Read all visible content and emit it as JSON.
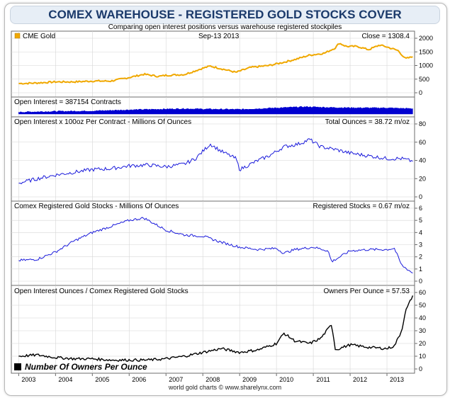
{
  "header": {
    "title": "COMEX WAREHOUSE - REGISTERED GOLD STOCKS COVER",
    "subtitle": "Comparing open interest positions versus warehouse registered stockpiles",
    "footer": "world gold charts © www.sharelynx.com"
  },
  "colors": {
    "gold": "#f0a800",
    "blue": "#1a1adb",
    "dark_blue": "#0000d0",
    "black": "#000000",
    "grid": "#d6d6d6",
    "border": "#6c6c6c"
  },
  "chart_data": [
    {
      "type": "line",
      "legend": "CME Gold",
      "date": "Sep-13  2013",
      "value_label": "Close = 1308.4",
      "ylim": [
        0,
        2000
      ],
      "yticks": [
        "0",
        "500",
        "1000",
        "1500",
        "2000"
      ],
      "series": [
        {
          "name": "CME Gold",
          "x": [
            2003.0,
            2003.5,
            2004.0,
            2004.5,
            2005.0,
            2005.5,
            2006.0,
            2006.4,
            2006.8,
            2007.0,
            2007.5,
            2008.0,
            2008.2,
            2008.6,
            2008.9,
            2009.3,
            2009.8,
            2010.2,
            2010.5,
            2010.9,
            2011.3,
            2011.6,
            2011.7,
            2011.9,
            2012.2,
            2012.5,
            2012.8,
            2013.0,
            2013.3,
            2013.5,
            2013.7
          ],
          "values": [
            340,
            360,
            400,
            400,
            430,
            430,
            560,
            680,
            600,
            640,
            670,
            900,
            980,
            850,
            750,
            930,
            1000,
            1120,
            1220,
            1380,
            1450,
            1650,
            1820,
            1700,
            1700,
            1580,
            1750,
            1680,
            1550,
            1250,
            1320
          ]
        }
      ]
    },
    {
      "type": "area",
      "legend": "Open Interest = 387154 Contracts",
      "series": [
        {
          "name": "Open Interest",
          "x": [
            2003.0,
            2004.0,
            2005.0,
            2006.0,
            2006.5,
            2007.5,
            2008.0,
            2009.0,
            2010.0,
            2010.8,
            2011.5,
            2012.5,
            2013.0,
            2013.7
          ],
          "values": [
            0.25,
            0.35,
            0.4,
            0.55,
            0.6,
            0.7,
            0.65,
            0.6,
            0.8,
            0.95,
            0.85,
            0.8,
            0.8,
            0.7
          ]
        }
      ]
    },
    {
      "type": "line",
      "legend": "Open Interest x 100oz Per Contract - Millions Of Ounces",
      "value_label": "Total Ounces = 38.72 m/oz",
      "ylim": [
        0,
        80
      ],
      "yticks": [
        "0",
        "20",
        "40",
        "60",
        "80"
      ],
      "series": [
        {
          "name": "Total Ounces",
          "x": [
            2003.0,
            2003.5,
            2004.0,
            2004.5,
            2005.0,
            2005.5,
            2006.0,
            2006.5,
            2007.0,
            2007.5,
            2007.8,
            2008.0,
            2008.2,
            2008.5,
            2008.9,
            2009.0,
            2009.5,
            2009.8,
            2010.2,
            2010.6,
            2010.9,
            2011.2,
            2011.6,
            2012.0,
            2012.5,
            2013.0,
            2013.4,
            2013.7
          ],
          "values": [
            15,
            20,
            24,
            27,
            30,
            31,
            34,
            35,
            33,
            36,
            42,
            50,
            58,
            50,
            42,
            30,
            40,
            45,
            55,
            58,
            63,
            55,
            52,
            48,
            45,
            42,
            42,
            39
          ]
        }
      ]
    },
    {
      "type": "line",
      "legend": "Comex Registered Gold Stocks - Millions Of Ounces",
      "value_label": "Registered Stocks = 0.67 m/oz",
      "ylim": [
        0,
        6
      ],
      "yticks": [
        "0",
        "1",
        "2",
        "3",
        "4",
        "5",
        "6"
      ],
      "series": [
        {
          "name": "Registered Stocks",
          "x": [
            2003.0,
            2003.5,
            2004.0,
            2004.5,
            2005.0,
            2005.5,
            2006.0,
            2006.4,
            2006.7,
            2007.0,
            2007.5,
            2008.0,
            2008.5,
            2009.0,
            2009.5,
            2010.0,
            2010.2,
            2010.5,
            2011.0,
            2011.4,
            2011.5,
            2012.0,
            2012.5,
            2013.0,
            2013.2,
            2013.4,
            2013.7
          ],
          "values": [
            1.7,
            1.8,
            2.4,
            3.3,
            4.0,
            4.5,
            5.0,
            5.2,
            4.7,
            4.2,
            3.8,
            3.7,
            3.2,
            2.8,
            2.6,
            2.7,
            2.3,
            2.6,
            2.8,
            2.5,
            1.6,
            2.5,
            2.6,
            2.6,
            2.7,
            1.3,
            0.67
          ]
        }
      ]
    },
    {
      "type": "line",
      "legend": "Open Interest Ounces / Comex Registered Gold Stocks",
      "value_label": "Owners Per Ounce = 57.53",
      "note": "Number Of Owners Per Ounce",
      "ylim": [
        0,
        60
      ],
      "yticks": [
        "0",
        "10",
        "20",
        "30",
        "40",
        "50",
        "60"
      ],
      "series": [
        {
          "name": "Number Of Owners Per Ounce",
          "x": [
            2003.0,
            2003.5,
            2004.0,
            2004.5,
            2005.0,
            2005.5,
            2006.0,
            2006.5,
            2007.0,
            2007.5,
            2008.0,
            2008.5,
            2009.0,
            2009.5,
            2010.0,
            2010.2,
            2010.5,
            2010.9,
            2011.2,
            2011.5,
            2011.6,
            2012.0,
            2012.5,
            2013.0,
            2013.2,
            2013.4,
            2013.5,
            2013.7
          ],
          "values": [
            10,
            11,
            9,
            8,
            8,
            7,
            7,
            7,
            8,
            10,
            13,
            16,
            13,
            15,
            20,
            28,
            22,
            20,
            24,
            35,
            15,
            19,
            17,
            16,
            18,
            30,
            45,
            57.53
          ]
        }
      ]
    }
  ],
  "x_axis": {
    "xlim": [
      2002.8,
      2013.75
    ],
    "labels": [
      "2003",
      "2004",
      "2005",
      "2006",
      "2007",
      "2008",
      "2009",
      "2010",
      "2011",
      "2012",
      "2013"
    ]
  }
}
